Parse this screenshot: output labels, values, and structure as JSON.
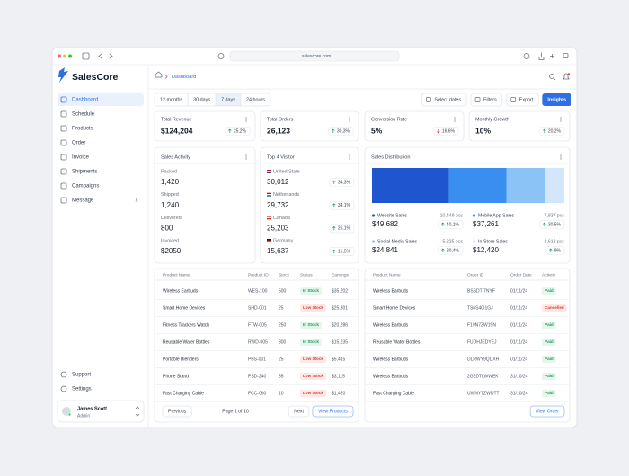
{
  "browser": {
    "url": "salescore.com"
  },
  "sidebar": {
    "brand": "SalesCore",
    "nav": [
      {
        "label": "Dashboard"
      },
      {
        "label": "Schedule"
      },
      {
        "label": "Products"
      },
      {
        "label": "Order"
      },
      {
        "label": "Invoice"
      },
      {
        "label": "Shipments"
      },
      {
        "label": "Campaigns"
      },
      {
        "label": "Message",
        "badge": "8"
      }
    ],
    "active": 0,
    "footer_nav": [
      "Support",
      "Settings"
    ],
    "user": {
      "name": "James Scott",
      "role": "Admin"
    }
  },
  "header": {
    "breadcrumb": "Dashboard"
  },
  "toolbar": {
    "ranges": [
      "12 months",
      "30 days",
      "7 days",
      "24 hours"
    ],
    "active_range": 2,
    "buttons": [
      "Select dates",
      "Filters",
      "Export"
    ],
    "primary": "Insights"
  },
  "kpis": [
    {
      "label": "Total Revenue",
      "value": "$124,204",
      "change": "25,2%",
      "trend": "up"
    },
    {
      "label": "Total Orders",
      "value": "26,123",
      "change": "30,3%",
      "trend": "up"
    },
    {
      "label": "Conversion Rate",
      "value": "5%",
      "change": "16.6%",
      "trend": "down"
    },
    {
      "label": "Monthly Growth",
      "value": "10%",
      "change": "20,2%",
      "trend": "up"
    }
  ],
  "sales_activity": {
    "title": "Sales Activity",
    "items": [
      {
        "label": "Packed",
        "value": "1,420"
      },
      {
        "label": "Shipped",
        "value": "1,240"
      },
      {
        "label": "Delivered",
        "value": "800"
      },
      {
        "label": "Invoiced",
        "value": "$2050"
      }
    ]
  },
  "top_visitor": {
    "title": "Top 4 Visitor",
    "items": [
      {
        "country": "United State",
        "value": "30,012",
        "change": "34,3%"
      },
      {
        "country": "Netherlands",
        "value": "29,732",
        "change": "34,1%"
      },
      {
        "country": "Canada",
        "value": "25,203",
        "change": "26,1%"
      },
      {
        "country": "Germany",
        "value": "15,637",
        "change": "16,5%"
      }
    ]
  },
  "sales_distribution": {
    "title": "Sales Distribution",
    "segments": [
      {
        "label": "Website Sales",
        "units": 10449,
        "units_label": "10,449 pcs",
        "value": "$49,682",
        "change": "40,1%",
        "color": "#1f56cf"
      },
      {
        "label": "Mobile App Sales",
        "units": 7837,
        "units_label": "7,837 pcs",
        "value": "$37,261",
        "change": "30,5%",
        "color": "#3a8ef0"
      },
      {
        "label": "Social Media Sales",
        "units": 5225,
        "units_label": "5,225 pcs",
        "value": "$24,841",
        "change": "20,4%",
        "color": "#8cc3f7"
      },
      {
        "label": "In-Store Sales",
        "units": 2612,
        "units_label": "2,612 pcs",
        "value": "$12,420",
        "change": "9%",
        "color": "#d3e6fb"
      }
    ]
  },
  "products_table": {
    "columns": [
      "Product Name",
      "Product ID",
      "Stock",
      "Status",
      "Earnings"
    ],
    "rows": [
      [
        "Wireless Earbuds",
        "WES-100",
        500,
        {
          "text": "In Stock",
          "tone": "green"
        },
        "$35,202"
      ],
      [
        "Smart Home Devices",
        "SHD-001",
        25,
        {
          "text": "Low Stock",
          "tone": "red"
        },
        "$25,301"
      ],
      [
        "Fitness Trackers Watch",
        "FTW-005",
        250,
        {
          "text": "In Stock",
          "tone": "green"
        },
        "$20,286"
      ],
      [
        "Reusable Water Bottles",
        "RWD-005",
        300,
        {
          "text": "In Stock",
          "tone": "green"
        },
        "$15,235"
      ],
      [
        "Portable Blenders",
        "PBS-001",
        25,
        {
          "text": "Low Stock",
          "tone": "red"
        },
        "$5,415"
      ],
      [
        "Phone Stand",
        "PSD-240",
        35,
        {
          "text": "Low Stock",
          "tone": "red"
        },
        "$3,115"
      ],
      [
        "Fast Charging Cable",
        "FCC-060",
        10,
        {
          "text": "Low Stock",
          "tone": "red"
        },
        "$1,420"
      ]
    ],
    "pagination": {
      "prev": "Previous",
      "page": "Page 1 of 10",
      "next": "Next",
      "action": "View Products"
    }
  },
  "orders_table": {
    "columns": [
      "Product Name",
      "Order ID",
      "Order Date",
      "Activity"
    ],
    "rows": [
      [
        "Wireless Earbuds",
        "BSSDTI7NYF",
        "01/11/24",
        {
          "text": "Paid",
          "tone": "green"
        }
      ],
      [
        "Smart Home Devices",
        "TS6S40I1GJ",
        "01/11/24",
        {
          "text": "Cancelled",
          "tone": "red"
        }
      ],
      [
        "Wireless Earbuds",
        "F19N7ZW19N",
        "01/11/24",
        {
          "text": "Paid",
          "tone": "green"
        }
      ],
      [
        "Reusable Water Bottles",
        "FUDHJEDYEJ",
        "01/11/24",
        {
          "text": "Paid",
          "tone": "green"
        }
      ],
      [
        "Wireless Earbuds",
        "DLRWY9QDXH",
        "01/11/24",
        {
          "text": "Paid",
          "tone": "green"
        }
      ],
      [
        "Wireless Earbuds",
        "2G2DTLWWEK",
        "31/10/24",
        {
          "text": "Paid",
          "tone": "green"
        }
      ],
      [
        "Fast Charging Cable",
        "UWNY7ZWDTT",
        "31/10/24",
        {
          "text": "Paid",
          "tone": "green"
        }
      ]
    ],
    "action": "View Order"
  }
}
